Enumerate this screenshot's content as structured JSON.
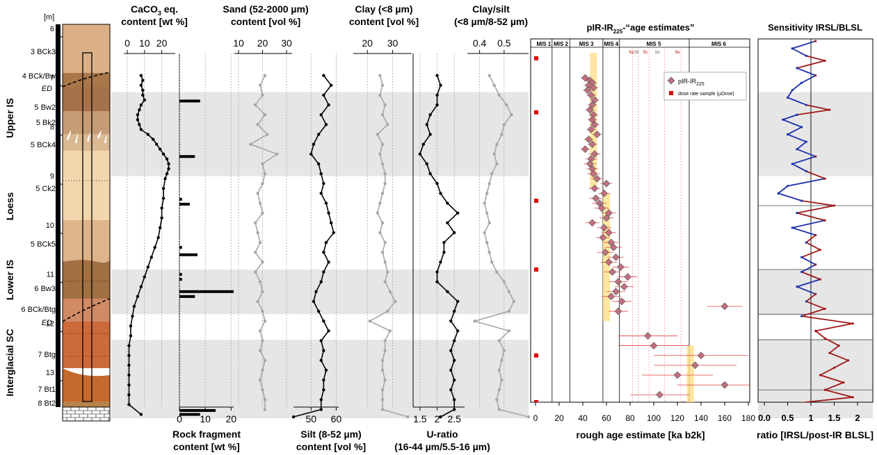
{
  "depth_axis_unit": "[m]",
  "depth_ticks": [
    "6",
    "7",
    "8",
    "9",
    "10",
    "11",
    "12",
    "13"
  ],
  "horizons": [
    "3 BCk3",
    "4 BCk/Bw",
    "ED",
    "5 Bw2",
    "5 Bk2",
    "5 BCk4",
    "5 Ck2",
    "5 BCk5",
    "6 Bw3",
    "6 BCk/Btg",
    "ED",
    "7 Btg",
    "7 Bt1",
    "8 Bt2"
  ],
  "units": [
    "Upper IS",
    "Loess",
    "Lower IS",
    "Interglacial SC"
  ],
  "panels": {
    "caco3": {
      "title_pre": "CaCO",
      "title_sub": "3",
      "title_post": " eq.",
      "title2": "content [wt %]",
      "ticks": [
        "0",
        "10",
        "20"
      ]
    },
    "rock": {
      "title": "Rock fragment",
      "title2": "content [wt %]",
      "ticks": [
        "0",
        "10",
        "20"
      ]
    },
    "sand": {
      "title": "Sand (52-2000 µm)",
      "title2": "content [vol %]",
      "ticks": [
        "10",
        "20",
        "30"
      ]
    },
    "silt": {
      "title": "Silt (8-52 µm)",
      "title2": "content [vol %]",
      "ticks": [
        "50",
        "60"
      ]
    },
    "clay": {
      "title": "Clay (<8 µm)",
      "title2": "content [vol %]",
      "ticks": [
        "20",
        "30"
      ]
    },
    "uratio": {
      "title": "U-ratio",
      "title2": "(16-44 µm/5.5-16 µm)",
      "ticks": [
        "1.5",
        "2",
        "2.5"
      ]
    },
    "clay_silt": {
      "title": "Clay/silt",
      "title2": "(<8 µm/8-52 µm)",
      "ticks": [
        "0.4",
        "0.5"
      ]
    },
    "age": {
      "title": "pIR-IR",
      "title_sub": "225",
      "title_post": "-“age estimates”",
      "xlabel": "rough age estimate [ka b2k]",
      "ticks": [
        "0",
        "20",
        "40",
        "60",
        "80",
        "100",
        "120",
        "140",
        "160",
        "180"
      ],
      "mis": [
        "MIS 1",
        "MIS 2",
        "MIS 3",
        "MIS 4",
        "MIS 5",
        "MIS 6"
      ],
      "substages": [
        "5a",
        "5b",
        "5c",
        "5d",
        "5e"
      ],
      "legend1": "pIR-IR",
      "legend1_sub": "225",
      "legend2": "dose rate sample (µDose)"
    },
    "sens": {
      "title": "Sensitivity IRSL/BLSL",
      "xlabel": "ratio [IRSL/post-IR BLSL]",
      "ticks": [
        "0.0",
        "0.5",
        "1",
        "1.5",
        "2"
      ]
    }
  },
  "colors": {
    "band": "#e6e6e6",
    "black_series": "#000000",
    "grey_series": "#a6a6a6",
    "marker": "#c0707e",
    "error": "#e04040",
    "dose": "#e00000",
    "blue": "#1a2fa8",
    "red": "#a01818",
    "mis_highlight": "#ffe08a"
  },
  "chart_data": {
    "type": "line",
    "y_axis": "depth [m]",
    "depth_range": [
      5.4,
      13.9
    ],
    "shaded_intervals_m": [
      [
        7.24,
        8.95
      ],
      [
        10.85,
        11.76
      ],
      [
        12.28,
        13.88
      ]
    ],
    "series": [
      {
        "name": "CaCO3 eq. content [wt %]",
        "depth": [
          6.9,
          7.0,
          7.1,
          7.2,
          7.3,
          7.4,
          7.5,
          7.6,
          7.7,
          7.8,
          7.9,
          8.0,
          8.1,
          8.2,
          8.3,
          8.4,
          8.5,
          8.6,
          8.7,
          8.8,
          8.9,
          9.0,
          9.2,
          9.4,
          9.6,
          9.8,
          10.0,
          10.2,
          10.4,
          10.6,
          10.8,
          11.0,
          11.2,
          11.4,
          11.6,
          11.8,
          12.0,
          12.2,
          12.4,
          12.6,
          12.8,
          13.0,
          13.2,
          13.4,
          13.6,
          13.8
        ],
        "values": [
          8,
          9,
          8,
          9,
          9,
          10,
          8,
          7,
          6,
          6,
          7,
          8,
          12,
          15,
          17,
          19,
          21,
          23,
          24,
          24,
          23,
          22,
          21,
          21,
          20,
          20,
          19,
          18,
          16,
          14,
          12,
          10,
          8,
          6,
          4,
          3,
          2,
          2,
          1,
          1,
          1,
          1,
          1,
          1,
          1,
          8
        ]
      },
      {
        "name": "Sand (52-2000 µm) content [vol %]",
        "depth": [
          6.9,
          7.1,
          7.3,
          7.5,
          7.7,
          7.9,
          8.1,
          8.3,
          8.5,
          8.7,
          8.9,
          9.1,
          9.3,
          9.5,
          9.7,
          9.9,
          10.1,
          10.3,
          10.5,
          10.7,
          10.9,
          11.1,
          11.3,
          11.5,
          11.7,
          11.9,
          12.1,
          12.3,
          12.5,
          12.7,
          12.9,
          13.1,
          13.3,
          13.5,
          13.7
        ],
        "values": [
          21,
          19,
          20,
          17,
          21,
          18,
          22,
          15,
          26,
          20,
          21,
          20,
          18,
          19,
          20,
          17,
          18,
          19,
          17,
          20,
          17,
          19,
          20,
          18,
          20,
          21,
          19,
          20,
          19,
          21,
          20,
          19,
          20,
          21,
          21
        ]
      },
      {
        "name": "Silt (8-52 µm) content [vol %]",
        "depth": [
          6.9,
          7.1,
          7.3,
          7.5,
          7.7,
          7.9,
          8.1,
          8.3,
          8.5,
          8.7,
          8.9,
          9.1,
          9.3,
          9.5,
          9.7,
          9.9,
          10.1,
          10.3,
          10.5,
          10.7,
          10.9,
          11.1,
          11.3,
          11.5,
          11.7,
          11.9,
          12.1,
          12.3,
          12.5,
          12.7,
          12.9,
          13.1,
          13.3,
          13.5,
          13.7,
          13.85
        ],
        "values": [
          55,
          58,
          55,
          57,
          54,
          56,
          53,
          51,
          50,
          53,
          54,
          55,
          54,
          56,
          57,
          58,
          59,
          56,
          55,
          57,
          55,
          54,
          52,
          51,
          53,
          55,
          57,
          54,
          55,
          54,
          56,
          55,
          55,
          54,
          54,
          43
        ]
      },
      {
        "name": "Clay (<8 µm) content [vol %]",
        "depth": [
          6.9,
          7.1,
          7.3,
          7.5,
          7.7,
          7.9,
          8.1,
          8.3,
          8.5,
          8.7,
          8.9,
          9.1,
          9.3,
          9.5,
          9.7,
          9.9,
          10.1,
          10.3,
          10.5,
          10.7,
          10.9,
          11.1,
          11.3,
          11.5,
          11.7,
          11.9,
          12.1,
          12.3,
          12.5,
          12.7,
          12.9,
          13.1,
          13.3,
          13.5,
          13.7,
          13.85
        ],
        "values": [
          25,
          26,
          25,
          27,
          26,
          28,
          24,
          26,
          25,
          26,
          27,
          27,
          26,
          25,
          24,
          26,
          25,
          27,
          26,
          27,
          28,
          27,
          29,
          31,
          28,
          21,
          29,
          27,
          27,
          26,
          26,
          27,
          26,
          26,
          26,
          36
        ]
      },
      {
        "name": "U-ratio (16-44 µm/5.5-16 µm)",
        "depth": [
          6.9,
          7.1,
          7.3,
          7.5,
          7.7,
          7.9,
          8.1,
          8.3,
          8.5,
          8.7,
          8.9,
          9.1,
          9.3,
          9.5,
          9.7,
          9.9,
          10.1,
          10.3,
          10.5,
          10.7,
          10.9,
          11.1,
          11.3,
          11.5,
          11.7,
          11.9,
          12.1,
          12.3,
          12.5,
          12.7,
          12.9,
          13.1,
          13.3,
          13.5,
          13.7,
          13.85
        ],
        "values": [
          2.0,
          2.1,
          2.0,
          2.0,
          1.8,
          1.7,
          1.8,
          1.6,
          1.5,
          1.7,
          1.8,
          2.0,
          2.1,
          2.3,
          2.6,
          2.3,
          2.5,
          2.2,
          2.2,
          2.1,
          2.0,
          2.0,
          2.3,
          2.6,
          2.5,
          2.4,
          2.6,
          2.5,
          2.4,
          2.5,
          2.4,
          2.5,
          2.4,
          2.5,
          2.5,
          2.1
        ]
      },
      {
        "name": "Clay/silt (<8 µm/8-52 µm)",
        "depth": [
          6.9,
          7.1,
          7.3,
          7.5,
          7.7,
          7.9,
          8.1,
          8.3,
          8.5,
          8.7,
          8.9,
          9.1,
          9.3,
          9.5,
          9.7,
          9.9,
          10.1,
          10.3,
          10.5,
          10.7,
          10.9,
          11.1,
          11.3,
          11.5,
          11.7,
          11.9,
          12.1,
          12.3,
          12.5,
          12.7,
          12.9,
          13.1,
          13.3,
          13.5,
          13.7,
          13.85
        ],
        "values": [
          0.44,
          0.46,
          0.48,
          0.51,
          0.53,
          0.5,
          0.49,
          0.47,
          0.46,
          0.47,
          0.45,
          0.44,
          0.43,
          0.42,
          0.43,
          0.44,
          0.42,
          0.43,
          0.44,
          0.45,
          0.47,
          0.5,
          0.52,
          0.54,
          0.52,
          0.38,
          0.52,
          0.48,
          0.5,
          0.49,
          0.48,
          0.49,
          0.48,
          0.47,
          0.48,
          0.6
        ]
      },
      {
        "name": "Rock fragment content [wt %]",
        "type": "bar",
        "depth": [
          7.42,
          8.55,
          9.42,
          9.52,
          10.4,
          10.55,
          10.95,
          11.05,
          11.3,
          11.4,
          13.72,
          13.8
        ],
        "values": [
          8,
          6,
          1,
          4,
          1,
          7,
          1,
          1,
          21,
          6,
          14,
          8
        ]
      },
      {
        "name": "pIR-IR225 age estimate [ka]",
        "depth": [
          6.95,
          7.0,
          7.05,
          7.1,
          7.15,
          7.2,
          7.3,
          7.4,
          7.5,
          7.6,
          7.7,
          7.8,
          7.9,
          8.0,
          8.1,
          8.2,
          8.3,
          8.4,
          8.5,
          8.6,
          8.7,
          8.8,
          8.9,
          9.0,
          9.1,
          9.2,
          9.3,
          9.4,
          9.5,
          9.6,
          9.7,
          9.8,
          9.9,
          10.0,
          10.1,
          10.2,
          10.3,
          10.4,
          10.5,
          10.6,
          10.7,
          10.8,
          10.9,
          11.0,
          11.1,
          11.2,
          11.3,
          11.4,
          11.5,
          11.6,
          11.7,
          12.2,
          12.4,
          12.6,
          12.8,
          13.0,
          13.2,
          13.4,
          13.6,
          13.7
        ],
        "values": [
          42,
          46,
          48,
          45,
          49,
          44,
          47,
          50,
          48,
          46,
          49,
          48,
          50,
          47,
          52,
          45,
          48,
          42,
          50,
          47,
          46,
          48,
          49,
          52,
          60,
          50,
          58,
          51,
          54,
          56,
          62,
          60,
          48,
          58,
          62,
          57,
          64,
          66,
          59,
          68,
          62,
          72,
          65,
          78,
          70,
          75,
          68,
          64,
          73,
          160,
          70,
          95,
          100,
          140,
          135,
          120,
          160,
          105,
          125,
          110
        ],
        "errors": [
          4,
          4,
          4,
          4,
          4,
          4,
          4,
          4,
          4,
          4,
          4,
          4,
          4,
          4,
          4,
          4,
          4,
          4,
          5,
          5,
          5,
          5,
          5,
          5,
          5,
          5,
          5,
          5,
          6,
          6,
          6,
          6,
          6,
          6,
          6,
          6,
          6,
          7,
          7,
          7,
          7,
          7,
          7,
          8,
          8,
          8,
          8,
          8,
          8,
          15,
          8,
          25,
          30,
          40,
          35,
          30,
          40,
          25,
          30,
          25
        ]
      },
      {
        "name": "Sensitivity IRSL/BLSL ratio",
        "depth": [
          6.2,
          6.35,
          6.5,
          6.6,
          6.75,
          6.9,
          7.05,
          7.2,
          7.35,
          7.5,
          7.6,
          7.7,
          7.8,
          7.95,
          8.1,
          8.25,
          8.4,
          8.55,
          8.7,
          8.85,
          9.0,
          9.15,
          9.3,
          9.45,
          9.55,
          9.7,
          9.85,
          10.0,
          10.15,
          10.3,
          10.45,
          10.6,
          10.75,
          10.9,
          11.05,
          11.2,
          11.35,
          11.5,
          11.65,
          11.8,
          11.95,
          12.1,
          12.25,
          12.4,
          12.55,
          12.7,
          12.85,
          13.0,
          13.15,
          13.3,
          13.45,
          13.6,
          13.75,
          13.85
        ],
        "values": [
          1.1,
          0.6,
          0.9,
          1.3,
          0.7,
          1.1,
          0.8,
          0.6,
          0.5,
          0.9,
          1.4,
          0.7,
          0.4,
          0.8,
          0.5,
          0.9,
          0.7,
          1.1,
          0.6,
          0.9,
          1.3,
          0.5,
          0.3,
          0.8,
          1.5,
          0.7,
          1.3,
          0.6,
          1.1,
          0.9,
          1.2,
          0.8,
          1.1,
          0.8,
          1.2,
          0.7,
          1.1,
          0.9,
          1.3,
          0.8,
          1.9,
          1.1,
          1.3,
          1.6,
          1.4,
          1.8,
          1.5,
          1.2,
          1.7,
          1.3,
          1.9,
          0.4,
          1.2,
          0.8
        ]
      }
    ]
  }
}
